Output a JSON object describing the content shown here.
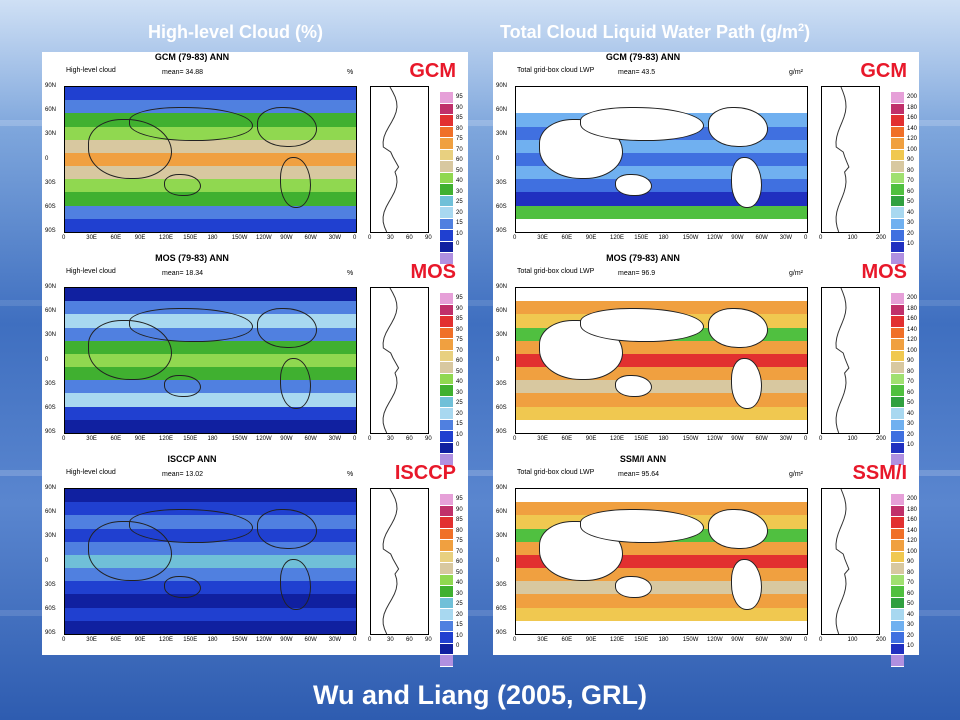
{
  "titles": {
    "left": "High-level Cloud (%)",
    "right_main": "Total Cloud Liquid Water Path (g/m",
    "right_sup": "2",
    "right_close": ")"
  },
  "footer": "Wu and Liang (2005, GRL)",
  "lat_ticks": [
    "90N",
    "60N",
    "30N",
    "0",
    "30S",
    "60S",
    "90S"
  ],
  "lon_ticks": [
    "0",
    "30E",
    "60E",
    "90E",
    "120E",
    "150E",
    "180",
    "150W",
    "120W",
    "90W",
    "60W",
    "30W",
    "0"
  ],
  "left_column": {
    "profile_ticks": [
      "0",
      "30",
      "60",
      "90"
    ],
    "colorbar_labels": [
      "95",
      "90",
      "85",
      "80",
      "75",
      "70",
      "60",
      "50",
      "40",
      "30",
      "25",
      "20",
      "15",
      "10",
      "0"
    ],
    "panels": [
      {
        "title": "GCM (79-83)  ANN",
        "variable": "High-level cloud",
        "mean": "mean= 34.88",
        "unit": "%",
        "label": "GCM",
        "dominant": "green"
      },
      {
        "title": "MOS (79-83)  ANN",
        "variable": "High-level cloud",
        "mean": "mean= 18.34",
        "unit": "%",
        "label": "MOS",
        "dominant": "blue"
      },
      {
        "title": "ISCCP  ANN",
        "variable": "High-level cloud",
        "mean": "mean= 13.02",
        "unit": "%",
        "label": "ISCCP",
        "dominant": "navy"
      }
    ]
  },
  "right_column": {
    "profile_ticks": [
      "0",
      "100",
      "200"
    ],
    "colorbar_labels": [
      "200",
      "180",
      "160",
      "140",
      "120",
      "100",
      "90",
      "80",
      "70",
      "60",
      "50",
      "40",
      "30",
      "20",
      "10"
    ],
    "panels": [
      {
        "title": "GCM (79-83)  ANN",
        "variable": "Total grid-box cloud LWP",
        "mean": "mean= 43.5",
        "unit": "g/m²",
        "label": "GCM",
        "dominant": "blue"
      },
      {
        "title": "MOS (79-83)  ANN",
        "variable": "Total grid-box cloud LWP",
        "mean": "mean= 96.9",
        "unit": "g/m²",
        "label": "MOS",
        "dominant": "orange"
      },
      {
        "title": "SSM/I  ANN",
        "variable": "Total grid-box cloud LWP",
        "mean": "mean= 95.64",
        "unit": "g/m²",
        "label": "SSM/I",
        "dominant": "orange"
      }
    ]
  },
  "palette": {
    "left": [
      "#e6a0d8",
      "#c0306a",
      "#e23030",
      "#f07028",
      "#f0a040",
      "#e8d080",
      "#d8c8a0",
      "#90d850",
      "#40b030",
      "#70c0d8",
      "#a8d8f0",
      "#5080e0",
      "#2040d0",
      "#1020a0",
      "#b090e0"
    ],
    "right": [
      "#e6a0d8",
      "#c0306a",
      "#e23030",
      "#f07028",
      "#f0a040",
      "#f0c850",
      "#d8c8a0",
      "#a0e070",
      "#50c040",
      "#30a040",
      "#a8d8f0",
      "#70b0f0",
      "#4070e0",
      "#2030c0",
      "#b090e0"
    ]
  }
}
